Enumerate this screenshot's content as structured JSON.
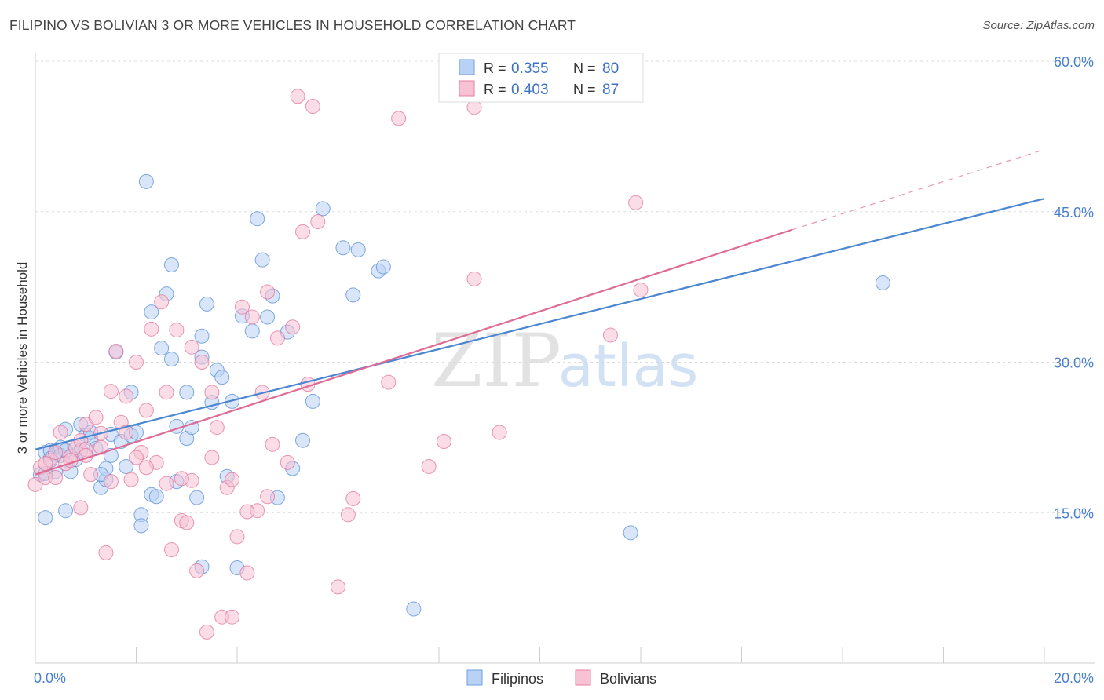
{
  "title": "FILIPINO VS BOLIVIAN 3 OR MORE VEHICLES IN HOUSEHOLD CORRELATION CHART",
  "source": "Source: ZipAtlas.com",
  "watermark": {
    "zip": "ZIP",
    "atlas": "atlas"
  },
  "legend_stats": [
    {
      "r_label": "R =",
      "r_value": "0.355",
      "n_label": "N =",
      "n_value": "80",
      "color": "#6fa0e0",
      "fill": "#b9d1f4"
    },
    {
      "r_label": "R =",
      "r_value": "0.403",
      "n_label": "N =",
      "n_value": "87",
      "color": "#e57fa3",
      "fill": "#f8c1d4"
    }
  ],
  "chart_data": {
    "type": "scatter",
    "title": "FILIPINO VS BOLIVIAN 3 OR MORE VEHICLES IN HOUSEHOLD CORRELATION CHART",
    "xlabel": "",
    "ylabel": "3 or more Vehicles in Household",
    "xlim": [
      0,
      20
    ],
    "ylim": [
      0,
      60
    ],
    "x_tick_labels": [
      "0.0%",
      "20.0%"
    ],
    "y_ticks": [
      15,
      30,
      45,
      60
    ],
    "y_tick_labels": [
      "15.0%",
      "30.0%",
      "45.0%",
      "60.0%"
    ],
    "grid": true,
    "legend_position": "bottom",
    "series": [
      {
        "name": "Filipinos",
        "color": "#4b86d1",
        "fill": "#b9d1f4",
        "trend": {
          "x": [
            0,
            20
          ],
          "y": [
            21.3,
            46.3
          ]
        },
        "points": [
          [
            0.1,
            18.8
          ],
          [
            0.2,
            14.5
          ],
          [
            0.2,
            21
          ],
          [
            0.3,
            21.2
          ],
          [
            0.4,
            20.8
          ],
          [
            0.4,
            19.1
          ],
          [
            0.5,
            21.5
          ],
          [
            0.6,
            23.3
          ],
          [
            0.6,
            15.2
          ],
          [
            0.7,
            19.1
          ],
          [
            0.8,
            21.3
          ],
          [
            0.9,
            23.8
          ],
          [
            1.0,
            22.7
          ],
          [
            1.1,
            22.4
          ],
          [
            1.2,
            21.4
          ],
          [
            1.3,
            17.5
          ],
          [
            1.4,
            18.3
          ],
          [
            1.5,
            20.7
          ],
          [
            1.5,
            22.8
          ],
          [
            1.6,
            31.0
          ],
          [
            1.7,
            22.1
          ],
          [
            1.8,
            19.6
          ],
          [
            1.9,
            22.7
          ],
          [
            1.9,
            27.0
          ],
          [
            2.1,
            14.8
          ],
          [
            2.1,
            13.7
          ],
          [
            2.2,
            48.0
          ],
          [
            2.3,
            35.0
          ],
          [
            2.3,
            16.8
          ],
          [
            2.4,
            16.6
          ],
          [
            2.5,
            31.4
          ],
          [
            2.6,
            36.8
          ],
          [
            2.7,
            30.3
          ],
          [
            2.7,
            39.7
          ],
          [
            2.8,
            18.1
          ],
          [
            3.0,
            22.4
          ],
          [
            3.1,
            23.5
          ],
          [
            3.2,
            16.5
          ],
          [
            3.3,
            32.6
          ],
          [
            3.3,
            30.5
          ],
          [
            3.4,
            35.8
          ],
          [
            3.5,
            26.0
          ],
          [
            3.6,
            29.2
          ],
          [
            3.7,
            28.5
          ],
          [
            3.8,
            18.6
          ],
          [
            3.9,
            26.1
          ],
          [
            4.0,
            9.5
          ],
          [
            4.1,
            34.6
          ],
          [
            4.3,
            33.1
          ],
          [
            4.4,
            44.3
          ],
          [
            4.5,
            40.2
          ],
          [
            4.6,
            34.5
          ],
          [
            4.7,
            36.6
          ],
          [
            4.8,
            16.5
          ],
          [
            5.0,
            33.0
          ],
          [
            5.1,
            19.4
          ],
          [
            5.3,
            22.2
          ],
          [
            5.5,
            26.1
          ],
          [
            5.7,
            45.3
          ],
          [
            6.1,
            41.4
          ],
          [
            6.3,
            36.7
          ],
          [
            6.4,
            41.2
          ],
          [
            6.8,
            39.1
          ],
          [
            6.9,
            39.5
          ],
          [
            7.5,
            5.4
          ],
          [
            11.8,
            13.0
          ],
          [
            16.8,
            37.9
          ],
          [
            0.3,
            20.4
          ],
          [
            0.5,
            20.7
          ],
          [
            0.9,
            21.2
          ],
          [
            1.1,
            23.0
          ],
          [
            1.4,
            19.4
          ],
          [
            2.0,
            23.0
          ],
          [
            2.8,
            23.6
          ],
          [
            3.0,
            27.0
          ],
          [
            0.2,
            18.9
          ],
          [
            0.8,
            20.3
          ],
          [
            1.3,
            18.8
          ],
          [
            0.6,
            21.2
          ],
          [
            3.3,
            9.6
          ]
        ]
      },
      {
        "name": "Bolivians",
        "color": "#df6b95",
        "fill": "#f8c1d4",
        "trend": {
          "x": [
            0,
            15.0
          ],
          "y": [
            18.8,
            43.2
          ]
        },
        "trend_dashed": {
          "x": [
            15.0,
            20
          ],
          "y": [
            43.2,
            51.2
          ]
        },
        "points": [
          [
            0.0,
            17.8
          ],
          [
            0.1,
            19.5
          ],
          [
            0.2,
            18.5
          ],
          [
            0.3,
            20.2
          ],
          [
            0.4,
            21.0
          ],
          [
            0.5,
            23.0
          ],
          [
            0.6,
            19.9
          ],
          [
            0.7,
            20.6
          ],
          [
            0.8,
            21.5
          ],
          [
            0.9,
            22.2
          ],
          [
            1.0,
            21.3
          ],
          [
            1.0,
            23.8
          ],
          [
            1.1,
            18.8
          ],
          [
            1.2,
            24.5
          ],
          [
            1.3,
            22.9
          ],
          [
            1.4,
            11.0
          ],
          [
            1.5,
            27.1
          ],
          [
            1.6,
            31.1
          ],
          [
            1.7,
            24.0
          ],
          [
            1.8,
            26.6
          ],
          [
            1.9,
            18.3
          ],
          [
            2.0,
            30.0
          ],
          [
            2.1,
            21.0
          ],
          [
            2.2,
            25.2
          ],
          [
            2.3,
            33.3
          ],
          [
            2.4,
            20.0
          ],
          [
            2.5,
            36.0
          ],
          [
            2.6,
            27.0
          ],
          [
            2.7,
            11.3
          ],
          [
            2.8,
            33.2
          ],
          [
            2.9,
            14.2
          ],
          [
            3.0,
            14.0
          ],
          [
            3.1,
            31.5
          ],
          [
            3.2,
            9.2
          ],
          [
            3.3,
            30.0
          ],
          [
            3.4,
            3.1
          ],
          [
            3.5,
            27.0
          ],
          [
            3.6,
            23.5
          ],
          [
            3.7,
            4.6
          ],
          [
            3.8,
            17.5
          ],
          [
            3.9,
            4.6
          ],
          [
            4.0,
            12.6
          ],
          [
            4.1,
            35.5
          ],
          [
            4.2,
            9.0
          ],
          [
            4.3,
            34.5
          ],
          [
            4.4,
            15.2
          ],
          [
            4.5,
            27.0
          ],
          [
            4.6,
            37.0
          ],
          [
            4.7,
            21.8
          ],
          [
            4.8,
            32.4
          ],
          [
            5.0,
            20.0
          ],
          [
            5.1,
            33.5
          ],
          [
            5.2,
            56.5
          ],
          [
            5.3,
            43.0
          ],
          [
            5.4,
            27.8
          ],
          [
            5.5,
            55.5
          ],
          [
            5.6,
            44.0
          ],
          [
            6.0,
            7.6
          ],
          [
            6.2,
            14.8
          ],
          [
            6.3,
            16.4
          ],
          [
            7.0,
            28.0
          ],
          [
            7.2,
            54.3
          ],
          [
            7.8,
            19.6
          ],
          [
            8.1,
            22.1
          ],
          [
            8.7,
            55.4
          ],
          [
            8.7,
            38.3
          ],
          [
            9.2,
            23.0
          ],
          [
            11.4,
            32.7
          ],
          [
            11.9,
            45.9
          ],
          [
            12.0,
            37.2
          ],
          [
            0.4,
            18.5
          ],
          [
            0.7,
            20.2
          ],
          [
            1.0,
            20.7
          ],
          [
            1.3,
            21.5
          ],
          [
            1.8,
            23.0
          ],
          [
            2.2,
            19.5
          ],
          [
            2.6,
            17.9
          ],
          [
            3.1,
            18.2
          ],
          [
            3.5,
            20.5
          ],
          [
            4.2,
            15.1
          ],
          [
            0.2,
            19.9
          ],
          [
            0.9,
            15.5
          ],
          [
            1.5,
            18.1
          ],
          [
            2.0,
            20.5
          ],
          [
            2.9,
            18.4
          ],
          [
            3.9,
            18.3
          ],
          [
            4.6,
            16.6
          ]
        ]
      }
    ]
  }
}
